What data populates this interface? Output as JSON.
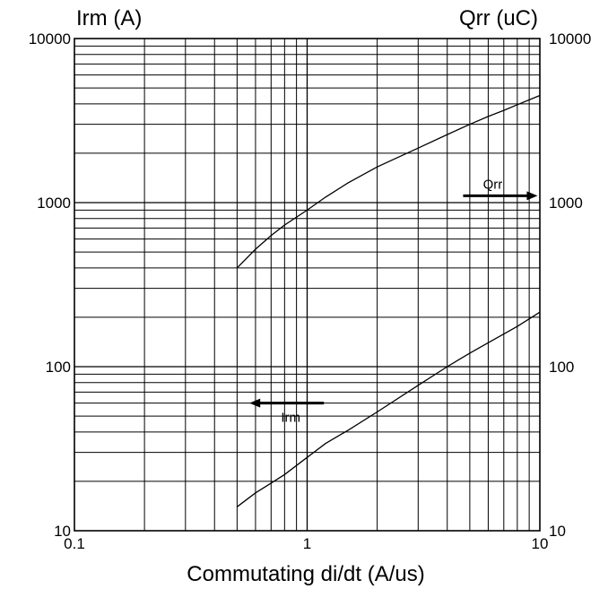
{
  "chart_data": {
    "type": "line",
    "x_scale": "log",
    "y_scale": "log",
    "xlim": [
      0.1,
      10
    ],
    "ylim": [
      10,
      10000
    ],
    "grid": true,
    "title": "",
    "xlabel": "Commutating di/dt (A/us)",
    "ylabel_left": "Irm (A)",
    "ylabel_right": "Qrr (uC)",
    "x_tick_labels": [
      "0.1",
      "1",
      "10"
    ],
    "y_tick_labels_left": [
      "10",
      "100",
      "1000",
      "10000"
    ],
    "y_tick_labels_right": [
      "10",
      "100",
      "1000",
      "10000"
    ],
    "series": [
      {
        "name": "Qrr",
        "axis": "right",
        "x": [
          0.5,
          0.6,
          0.7,
          0.8,
          1.0,
          1.2,
          1.5,
          2,
          3,
          4,
          5,
          6,
          7,
          8,
          10
        ],
        "y": [
          400,
          520,
          630,
          730,
          900,
          1080,
          1320,
          1650,
          2150,
          2600,
          3000,
          3350,
          3650,
          3950,
          4500
        ]
      },
      {
        "name": "Irm",
        "axis": "left",
        "x": [
          0.5,
          0.6,
          0.7,
          0.8,
          1.0,
          1.2,
          1.5,
          2,
          3,
          4,
          5,
          6,
          7,
          8,
          10
        ],
        "y": [
          14,
          17,
          19.5,
          22,
          28,
          34,
          41,
          53,
          77,
          100,
          121,
          140,
          158,
          176,
          215
        ]
      }
    ],
    "annotations": [
      {
        "text": "Qrr",
        "arrow": "right",
        "x": 6.5,
        "y": 1100
      },
      {
        "text": "Irm",
        "arrow": "left",
        "x": 0.85,
        "y": 60
      }
    ]
  }
}
